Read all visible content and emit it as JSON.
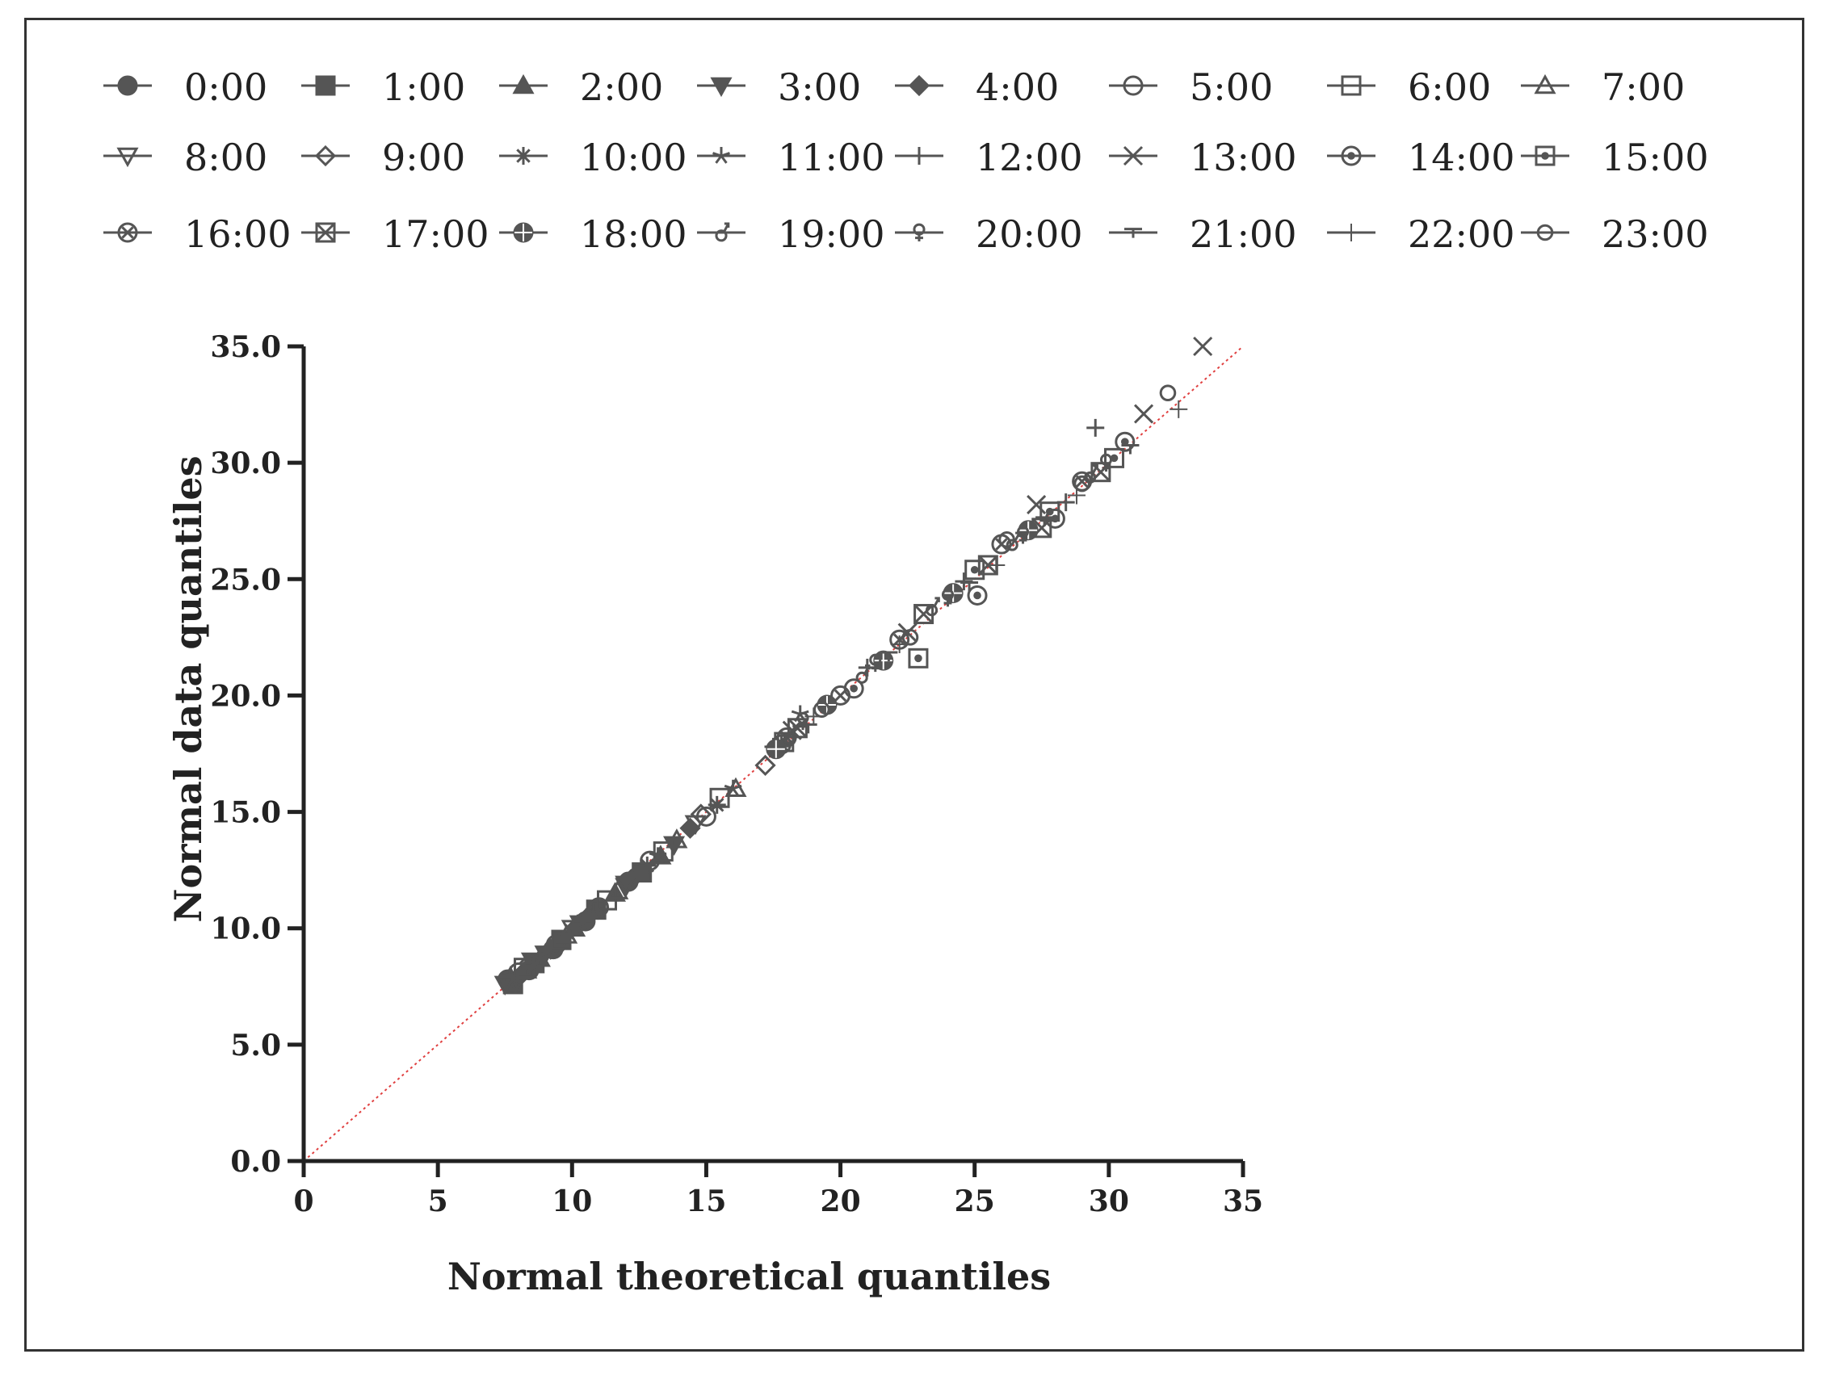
{
  "chart_data": {
    "type": "scatter",
    "title": "",
    "xlabel": "Normal theoretical quantiles",
    "ylabel": "Normal data quantiles",
    "xlim": [
      0,
      35
    ],
    "ylim": [
      0,
      35
    ],
    "x_ticks": [
      "0",
      "5",
      "10",
      "15",
      "20",
      "25",
      "30",
      "35"
    ],
    "y_ticks": [
      "0.0",
      "5.0",
      "10.0",
      "15.0",
      "20.0",
      "25.0",
      "30.0",
      "35.0"
    ],
    "grid": false,
    "legend_position": "top",
    "reference_line": {
      "from": [
        0,
        0
      ],
      "to": [
        35,
        35
      ],
      "color": "#e04040",
      "style": "dotted"
    },
    "marker_color": "#555555",
    "series": [
      {
        "name": "0:00",
        "marker": "filled-circle",
        "x": [
          7.6,
          8.4,
          9.3,
          10.5,
          12.1
        ],
        "y": [
          7.8,
          8.2,
          9.1,
          10.3,
          12.0
        ]
      },
      {
        "name": "1:00",
        "marker": "filled-square",
        "x": [
          7.8,
          8.6,
          9.6,
          10.9,
          12.6
        ],
        "y": [
          7.6,
          8.5,
          9.5,
          10.8,
          12.4
        ]
      },
      {
        "name": "2:00",
        "marker": "filled-triangle-up",
        "x": [
          7.7,
          8.8,
          10.1,
          11.6,
          13.3
        ],
        "y": [
          7.9,
          8.7,
          10.0,
          11.5,
          13.1
        ]
      },
      {
        "name": "3:00",
        "marker": "filled-triangle-down",
        "x": [
          7.9,
          9.0,
          10.3,
          12.0,
          13.8
        ],
        "y": [
          7.7,
          8.9,
          10.2,
          11.8,
          13.6
        ]
      },
      {
        "name": "4:00",
        "marker": "filled-diamond",
        "x": [
          8.1,
          9.2,
          10.6,
          12.4,
          14.4
        ],
        "y": [
          8.0,
          9.1,
          10.5,
          12.3,
          14.3
        ]
      },
      {
        "name": "5:00",
        "marker": "open-circle",
        "x": [
          8.0,
          9.4,
          11.0,
          12.9,
          15.0
        ],
        "y": [
          8.1,
          9.3,
          10.9,
          12.9,
          14.8
        ]
      },
      {
        "name": "6:00",
        "marker": "open-square",
        "x": [
          8.2,
          9.6,
          11.3,
          13.4,
          15.5
        ],
        "y": [
          8.3,
          9.5,
          11.2,
          13.3,
          15.6
        ]
      },
      {
        "name": "7:00",
        "marker": "open-triangle-up",
        "x": [
          8.3,
          9.8,
          11.7,
          13.9,
          16.1
        ],
        "y": [
          8.2,
          9.7,
          11.6,
          13.8,
          16.0
        ]
      },
      {
        "name": "8:00",
        "marker": "open-triangle-down",
        "x": [
          7.5,
          8.5,
          10.0,
          12.0,
          14.6
        ],
        "y": [
          7.6,
          8.6,
          10.0,
          11.9,
          14.5
        ]
      },
      {
        "name": "9:00",
        "marker": "open-diamond",
        "x": [
          8.4,
          10.2,
          12.2,
          14.8,
          17.2
        ],
        "y": [
          8.5,
          10.1,
          12.1,
          14.9,
          17.0
        ]
      },
      {
        "name": "10:00",
        "marker": "asterisk",
        "x": [
          8.6,
          10.4,
          12.8,
          15.4,
          17.8
        ],
        "y": [
          8.4,
          10.3,
          12.7,
          15.3,
          17.9
        ]
      },
      {
        "name": "11:00",
        "marker": "star",
        "x": [
          8.8,
          10.8,
          13.2,
          16.0,
          18.5
        ],
        "y": [
          8.7,
          10.7,
          13.1,
          16.0,
          19.2
        ]
      },
      {
        "name": "12:00",
        "marker": "plus",
        "x": [
          17.5,
          21.0,
          24.6,
          28.4,
          29.5
        ],
        "y": [
          17.8,
          21.2,
          24.9,
          28.3,
          31.5
        ]
      },
      {
        "name": "13:00",
        "marker": "cross",
        "x": [
          18.2,
          22.5,
          27.3,
          31.3,
          33.5
        ],
        "y": [
          18.5,
          22.7,
          28.2,
          32.1,
          35.0
        ]
      },
      {
        "name": "14:00",
        "marker": "circle-dot",
        "x": [
          17.8,
          20.5,
          25.1,
          28.0,
          30.6
        ],
        "y": [
          17.9,
          20.3,
          24.3,
          27.6,
          30.9
        ]
      },
      {
        "name": "15:00",
        "marker": "square-dot",
        "x": [
          17.9,
          22.9,
          25.0,
          27.8,
          30.2
        ],
        "y": [
          18.0,
          21.6,
          25.4,
          27.9,
          30.2
        ]
      },
      {
        "name": "16:00",
        "marker": "circle-x",
        "x": [
          18.0,
          20.0,
          22.2,
          26.0,
          29.0
        ],
        "y": [
          18.2,
          20.0,
          22.4,
          26.5,
          29.2
        ]
      },
      {
        "name": "17:00",
        "marker": "square-x",
        "x": [
          18.4,
          23.1,
          25.5,
          27.5,
          29.7
        ],
        "y": [
          18.6,
          23.5,
          25.6,
          27.2,
          29.6
        ]
      },
      {
        "name": "18:00",
        "marker": "circle-plus",
        "x": [
          17.6,
          19.5,
          21.6,
          24.2,
          27.0
        ],
        "y": [
          17.7,
          19.6,
          21.5,
          24.4,
          27.1
        ]
      },
      {
        "name": "19:00",
        "marker": "male-symbol",
        "x": [
          18.1,
          20.8,
          23.4,
          26.4,
          29.3
        ],
        "y": [
          18.3,
          20.9,
          23.8,
          26.6,
          29.5
        ]
      },
      {
        "name": "20:00",
        "marker": "female-symbol",
        "x": [
          18.6,
          21.3,
          24.0,
          26.8,
          29.9
        ],
        "y": [
          18.9,
          21.4,
          24.2,
          26.9,
          30.0
        ]
      },
      {
        "name": "21:00",
        "marker": "t-bar",
        "x": [
          18.8,
          21.8,
          24.8,
          27.6,
          30.8
        ],
        "y": [
          18.6,
          21.7,
          24.7,
          27.5,
          30.6
        ]
      },
      {
        "name": "22:00",
        "marker": "thin-plus",
        "x": [
          19.0,
          22.2,
          25.8,
          28.8,
          32.6
        ],
        "y": [
          19.1,
          22.2,
          25.6,
          28.6,
          32.3
        ]
      },
      {
        "name": "23:00",
        "marker": "circle-dash",
        "x": [
          19.3,
          22.6,
          26.2,
          29.0,
          32.2
        ],
        "y": [
          19.4,
          22.5,
          26.7,
          29.1,
          33.0
        ]
      }
    ]
  }
}
